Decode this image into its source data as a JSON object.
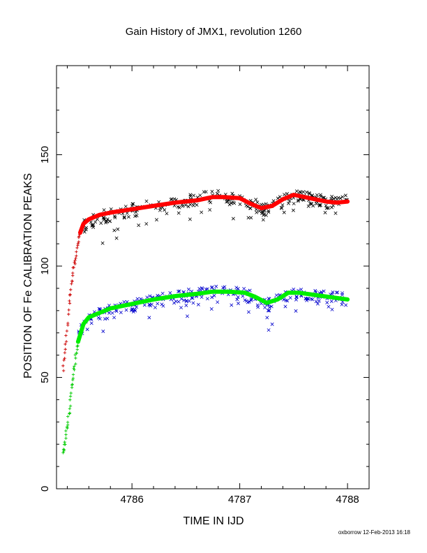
{
  "chart_data": {
    "type": "scatter",
    "title": "Gain History of JMX1, revolution 1260",
    "xlabel": "TIME IN IJD",
    "ylabel": "POSITION OF Fe CALIBRATION PEAKS",
    "xlim": [
      4785.3,
      4788.2
    ],
    "ylim": [
      0,
      190
    ],
    "x_ticks": [
      4786,
      4787,
      4788
    ],
    "y_ticks": [
      0,
      50,
      100,
      150
    ],
    "x_tick_labels": [
      "4786",
      "4787",
      "4788"
    ],
    "y_tick_labels": [
      "0",
      "50",
      "100",
      "150"
    ],
    "grid": false,
    "legend": "none",
    "series": [
      {
        "marker": "cross",
        "color": "#cc0000",
        "x": [
          4785.36,
          4785.38,
          4785.4,
          4785.42,
          4785.44,
          4785.46,
          4785.48,
          4785.5,
          4785.52
        ],
        "values": [
          54,
          62,
          72,
          84,
          92,
          99,
          104,
          110,
          115
        ]
      },
      {
        "marker": "x",
        "color": "#000000",
        "x": [
          4785.55,
          4785.65,
          4785.8,
          4786.0,
          4786.2,
          4786.4,
          4786.6,
          4786.8,
          4787.0,
          4787.15,
          4787.25,
          4787.35,
          4787.5,
          4787.65,
          4787.8,
          4788.0
        ],
        "values": [
          118,
          121,
          123,
          125,
          127,
          129,
          130,
          131,
          130,
          127,
          125,
          128,
          131,
          130,
          129,
          129
        ]
      },
      {
        "marker": "line",
        "color": "#ff0000",
        "x": [
          4785.52,
          4785.55,
          4785.6,
          4785.7,
          4785.8,
          4786.0,
          4786.2,
          4786.4,
          4786.6,
          4786.75,
          4786.85,
          4787.0,
          4787.1,
          4787.2,
          4787.3,
          4787.4,
          4787.5,
          4787.6,
          4787.7,
          4787.8,
          4787.9,
          4788.0
        ],
        "values": [
          115,
          119,
          121,
          123,
          124,
          125.5,
          127,
          128.5,
          129.5,
          131,
          131,
          130.5,
          128,
          126,
          127,
          130,
          132,
          131,
          130,
          129,
          128.5,
          129
        ]
      },
      {
        "marker": "cross",
        "color": "#00cc00",
        "x": [
          4785.36,
          4785.38,
          4785.4,
          4785.42,
          4785.44,
          4785.46,
          4785.48,
          4785.5
        ],
        "values": [
          16,
          21,
          28,
          36,
          45,
          53,
          60,
          66
        ]
      },
      {
        "marker": "x",
        "color": "#0000cc",
        "x": [
          4785.5,
          4785.6,
          4785.75,
          4786.0,
          4786.2,
          4786.4,
          4786.6,
          4786.8,
          4787.0,
          4787.15,
          4787.25,
          4787.35,
          4787.5,
          4787.7,
          4787.9,
          4788.0
        ],
        "values": [
          70,
          76,
          79,
          82,
          84,
          86,
          87,
          88,
          88,
          85,
          82,
          85,
          88,
          87,
          86,
          84
        ]
      },
      {
        "marker": "line",
        "color": "#00ee00",
        "x": [
          4785.5,
          4785.55,
          4785.6,
          4785.7,
          4785.8,
          4786.0,
          4786.2,
          4786.4,
          4786.6,
          4786.75,
          4786.9,
          4787.05,
          4787.15,
          4787.25,
          4787.35,
          4787.45,
          4787.55,
          4787.7,
          4787.85,
          4788.0
        ],
        "values": [
          66,
          74,
          77,
          79,
          81,
          83,
          85,
          86.5,
          87.5,
          88.5,
          88.5,
          88,
          86,
          83.5,
          85,
          88,
          88,
          87,
          86,
          85
        ]
      }
    ]
  },
  "footer": {
    "credit": "oxborrow 12-Feb-2013 16:18"
  }
}
